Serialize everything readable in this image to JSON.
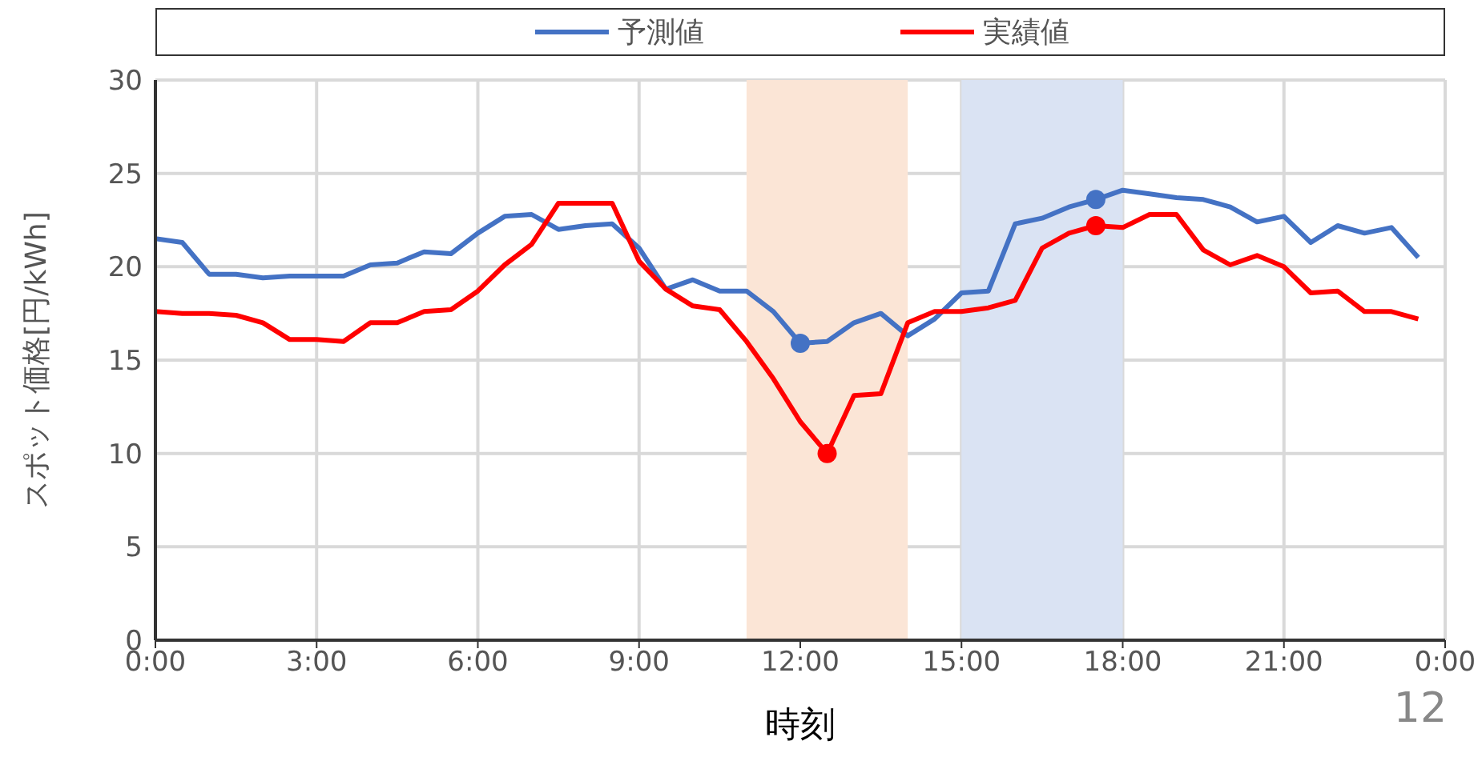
{
  "chart_data": {
    "type": "line",
    "xlabel": "時刻",
    "ylabel": "スポット価格[円/kWh]",
    "x": [
      0,
      0.5,
      1,
      1.5,
      2,
      2.5,
      3,
      3.5,
      4,
      4.5,
      5,
      5.5,
      6,
      6.5,
      7,
      7.5,
      8,
      8.5,
      9,
      9.5,
      10,
      10.5,
      11,
      11.5,
      12,
      12.5,
      13,
      13.5,
      14,
      14.5,
      15,
      15.5,
      16,
      16.5,
      17,
      17.5,
      18,
      18.5,
      19,
      19.5,
      20,
      20.5,
      21,
      21.5,
      22,
      22.5,
      23,
      23.5
    ],
    "series": [
      {
        "name": "予測値",
        "color": "#4472c4",
        "values": [
          21.5,
          21.3,
          19.6,
          19.6,
          19.4,
          19.5,
          19.5,
          19.5,
          20.1,
          20.2,
          20.8,
          20.7,
          21.8,
          22.7,
          22.8,
          22.0,
          22.2,
          22.3,
          21.0,
          18.8,
          19.3,
          18.7,
          18.7,
          17.6,
          15.9,
          16.0,
          17.0,
          17.5,
          16.3,
          17.2,
          18.6,
          18.7,
          22.3,
          22.6,
          23.2,
          23.6,
          24.1,
          23.9,
          23.7,
          23.6,
          23.2,
          22.4,
          22.7,
          21.3,
          22.2,
          21.8,
          22.1,
          20.5
        ]
      },
      {
        "name": "実績値",
        "color": "#ff0000",
        "values": [
          17.6,
          17.5,
          17.5,
          17.4,
          17.0,
          16.1,
          16.1,
          16.0,
          17.0,
          17.0,
          17.6,
          17.7,
          18.7,
          20.1,
          21.2,
          23.4,
          23.4,
          23.4,
          20.3,
          18.8,
          17.9,
          17.7,
          16.0,
          14.0,
          11.7,
          10.0,
          13.1,
          13.2,
          17.0,
          17.6,
          17.6,
          17.8,
          18.2,
          21.0,
          21.8,
          22.2,
          22.1,
          22.8,
          22.8,
          20.9,
          20.1,
          20.6,
          20.0,
          18.6,
          18.7,
          17.6,
          17.6,
          17.2
        ]
      },
      {
        "type": "scatter",
        "marker": "circle",
        "color": "#4472c4",
        "x": [
          12,
          17.5
        ],
        "values": [
          15.9,
          23.6
        ]
      },
      {
        "type": "scatter",
        "marker": "circle",
        "color": "#ff0000",
        "x": [
          12.5,
          17.5
        ],
        "values": [
          10.0,
          22.2
        ]
      }
    ],
    "xlim": [
      0,
      24
    ],
    "xticks": [
      {
        "value": 0,
        "label": "0:00"
      },
      {
        "value": 3,
        "label": "3:00"
      },
      {
        "value": 6,
        "label": "6:00"
      },
      {
        "value": 9,
        "label": "9:00"
      },
      {
        "value": 12,
        "label": "12:00"
      },
      {
        "value": 15,
        "label": "15:00"
      },
      {
        "value": 18,
        "label": "18:00"
      },
      {
        "value": 21,
        "label": "21:00"
      },
      {
        "value": 24,
        "label": "0:00"
      }
    ],
    "ylim": [
      0,
      30
    ],
    "yticks": [
      0,
      5,
      10,
      15,
      20,
      25,
      30
    ],
    "bands": [
      {
        "axis": "x",
        "from": 11,
        "to": 14,
        "color": "#fbe5d6"
      },
      {
        "axis": "x",
        "from": 15,
        "to": 18,
        "color": "#dae3f3"
      }
    ],
    "grid": true,
    "legend": "top",
    "marker": "none",
    "line_style": "solid",
    "annotations": [
      "12"
    ]
  }
}
